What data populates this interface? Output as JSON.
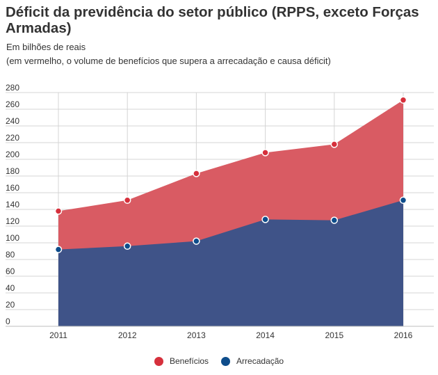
{
  "header": {
    "title": "Déficit da previdência do setor público (RPPS, exceto Forças Armadas)",
    "subtitle": "Em bilhões de reais",
    "note": "(em vermelho, o volume de benefícios que supera a arrecadação e causa déficit)"
  },
  "chart_data": {
    "type": "area",
    "categories": [
      "2011",
      "2012",
      "2013",
      "2014",
      "2015",
      "2016"
    ],
    "series": [
      {
        "name": "Benefícios",
        "values": [
          138,
          151,
          183,
          208,
          218,
          271
        ],
        "color": "#d6303c"
      },
      {
        "name": "Arrecadação",
        "values": [
          92,
          96,
          102,
          128,
          127,
          151
        ],
        "color": "#0e4d8b"
      }
    ],
    "ylim": [
      0,
      280
    ],
    "yticks": [
      0,
      20,
      40,
      60,
      80,
      100,
      120,
      140,
      160,
      180,
      200,
      220,
      240,
      260,
      280
    ],
    "grid": true,
    "legend_position": "bottom",
    "area_colors": {
      "beneficios": "#d95b63",
      "arrecadacao": "#3f5388"
    }
  },
  "legend": {
    "items": [
      {
        "label": "Benefícios",
        "color": "#d6303c"
      },
      {
        "label": "Arrecadação",
        "color": "#0e4d8b"
      }
    ]
  }
}
